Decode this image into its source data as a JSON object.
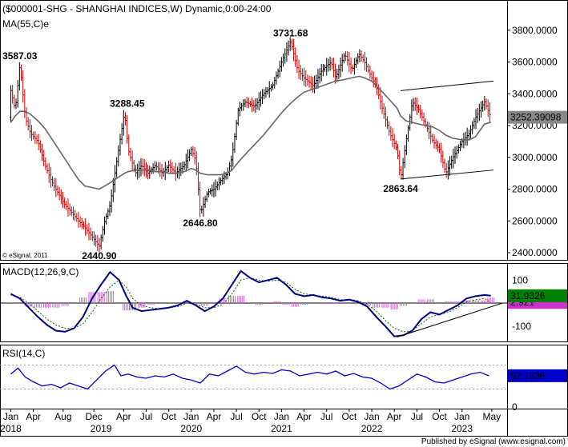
{
  "title": "($000001-SHG - SHANGHAI INDICES,W) Dynamic,0:00-24:00",
  "ma_label": "MA(55,C)e",
  "copyright": "© eSignal, 2011",
  "footer": "Published by eSignal (www.esignal.com)",
  "colors": {
    "price": "#cc0000",
    "price_up": "#000000",
    "ma": "#666666",
    "macd": "#000080",
    "signal": "#006600",
    "hist": "#cc66cc",
    "rsi": "#0000cc",
    "badge_blue": "#0000cc",
    "badge_green": "#008000",
    "badge_magenta": "#cc33cc"
  },
  "chart_data": [
    {
      "type": "line",
      "name": "price",
      "ylim": [
        2380,
        3950
      ],
      "y_ticks": [
        "3800.0000",
        "3600.0000",
        "3400.0000",
        "3200.0000",
        "3000.0000",
        "2800.0000",
        "2600.0000",
        "2400.0000"
      ],
      "y_tick_values": [
        3800,
        3600,
        3400,
        3200,
        3000,
        2800,
        2600,
        2400
      ],
      "last_value_label": "3252.39098",
      "last_value": 3252.39,
      "annotations": [
        {
          "text": "3587.03",
          "value": 3587.03,
          "date": 2018.1
        },
        {
          "text": "3288.45",
          "value": 3288.45,
          "date": 2019.29
        },
        {
          "text": "3731.68",
          "value": 3731.68,
          "date": 2021.1
        },
        {
          "text": "2440.90",
          "value": 2440.9,
          "date": 2018.98
        },
        {
          "text": "2646.80",
          "value": 2646.8,
          "date": 2020.1
        },
        {
          "text": "2863.64",
          "value": 2863.64,
          "date": 2022.32
        }
      ],
      "x_dates": [
        2018.0,
        2018.05,
        2018.1,
        2018.16,
        2018.22,
        2018.3,
        2018.38,
        2018.45,
        2018.52,
        2018.6,
        2018.68,
        2018.75,
        2018.82,
        2018.9,
        2018.98,
        2019.04,
        2019.1,
        2019.18,
        2019.26,
        2019.3,
        2019.38,
        2019.45,
        2019.52,
        2019.6,
        2019.68,
        2019.75,
        2019.83,
        2019.92,
        2020.0,
        2020.05,
        2020.1,
        2020.18,
        2020.25,
        2020.32,
        2020.4,
        2020.45,
        2020.52,
        2020.6,
        2020.7,
        2020.8,
        2020.9,
        2021.0,
        2021.1,
        2021.18,
        2021.25,
        2021.35,
        2021.45,
        2021.55,
        2021.6,
        2021.7,
        2021.78,
        2021.86,
        2021.92,
        2022.0,
        2022.05,
        2022.12,
        2022.2,
        2022.28,
        2022.32,
        2022.38,
        2022.45,
        2022.52,
        2022.6,
        2022.68,
        2022.75,
        2022.82,
        2022.9,
        2023.0,
        2023.08,
        2023.15,
        2023.2,
        2023.25,
        2023.32
      ],
      "close": [
        3420,
        3300,
        3587,
        3250,
        3150,
        3100,
        2950,
        2850,
        2780,
        2700,
        2650,
        2600,
        2560,
        2500,
        2440,
        2600,
        2700,
        3000,
        3288,
        3050,
        2900,
        2950,
        2900,
        2950,
        2900,
        2950,
        2900,
        2950,
        3050,
        2980,
        2646,
        2780,
        2800,
        2850,
        2900,
        3000,
        3300,
        3350,
        3320,
        3400,
        3450,
        3600,
        3731,
        3550,
        3500,
        3450,
        3550,
        3600,
        3500,
        3650,
        3550,
        3650,
        3600,
        3500,
        3450,
        3300,
        3150,
        3050,
        2863,
        3100,
        3350,
        3300,
        3200,
        3100,
        3050,
        2900,
        3000,
        3100,
        3150,
        3250,
        3300,
        3350,
        3252
      ],
      "ma55": [
        3220,
        3260,
        3290,
        3290,
        3270,
        3230,
        3180,
        3120,
        3060,
        2990,
        2920,
        2860,
        2820,
        2810,
        2800,
        2820,
        2840,
        2870,
        2900,
        2910,
        2920,
        2920,
        2920,
        2910,
        2910,
        2900,
        2900,
        2910,
        2930,
        2920,
        2900,
        2890,
        2890,
        2890,
        2900,
        2920,
        2970,
        3020,
        3080,
        3140,
        3210,
        3280,
        3340,
        3380,
        3410,
        3430,
        3450,
        3470,
        3480,
        3490,
        3500,
        3510,
        3500,
        3480,
        3450,
        3410,
        3360,
        3310,
        3260,
        3230,
        3220,
        3210,
        3200,
        3190,
        3170,
        3140,
        3120,
        3110,
        3110,
        3130,
        3170,
        3210,
        3220
      ]
    },
    {
      "type": "line",
      "name": "MACD(12,26,9,C)",
      "ylim": [
        -160,
        160
      ],
      "y_ticks": [
        "100",
        "-100"
      ],
      "y_tick_values": [
        100,
        -100
      ],
      "last_value_label": "31.9326",
      "last_value": 31.93,
      "signal_last_label": "2.921",
      "signal_last_value": 2.92,
      "x_dates": [
        2018.0,
        2018.1,
        2018.2,
        2018.3,
        2018.4,
        2018.5,
        2018.6,
        2018.7,
        2018.8,
        2018.9,
        2019.0,
        2019.1,
        2019.2,
        2019.28,
        2019.35,
        2019.45,
        2019.55,
        2019.65,
        2019.75,
        2019.85,
        2019.95,
        2020.05,
        2020.15,
        2020.25,
        2020.35,
        2020.45,
        2020.55,
        2020.65,
        2020.75,
        2020.85,
        2020.95,
        2021.05,
        2021.15,
        2021.25,
        2021.35,
        2021.45,
        2021.55,
        2021.65,
        2021.75,
        2021.85,
        2021.95,
        2022.05,
        2022.15,
        2022.25,
        2022.35,
        2022.45,
        2022.55,
        2022.65,
        2022.75,
        2022.85,
        2022.95,
        2023.05,
        2023.15,
        2023.25,
        2023.32
      ],
      "macd": [
        40,
        20,
        -20,
        -60,
        -95,
        -120,
        -125,
        -110,
        -60,
        20,
        80,
        135,
        100,
        30,
        -20,
        -35,
        -30,
        -25,
        -20,
        -10,
        10,
        -10,
        -35,
        -15,
        20,
        80,
        140,
        110,
        90,
        100,
        110,
        80,
        40,
        30,
        35,
        25,
        20,
        10,
        15,
        5,
        -15,
        -60,
        -100,
        -145,
        -140,
        -120,
        -70,
        -40,
        -50,
        -30,
        -10,
        20,
        30,
        35,
        32
      ],
      "signal": [
        35,
        25,
        0,
        -35,
        -70,
        -95,
        -110,
        -110,
        -90,
        -40,
        20,
        70,
        100,
        70,
        20,
        -10,
        -20,
        -25,
        -20,
        -15,
        0,
        -5,
        -20,
        -20,
        -5,
        40,
        100,
        110,
        100,
        95,
        100,
        90,
        60,
        40,
        35,
        30,
        25,
        15,
        15,
        10,
        -5,
        -35,
        -75,
        -110,
        -125,
        -120,
        -90,
        -60,
        -50,
        -40,
        -20,
        5,
        15,
        20,
        3
      ]
    },
    {
      "type": "line",
      "name": "RSI(14,C)",
      "ylim": [
        0,
        100
      ],
      "y_ticks": [
        "50",
        "0"
      ],
      "y_tick_values": [
        50,
        0
      ],
      "last_value_label": "52.1836",
      "last_value": 52.18,
      "x_dates": [
        2018.0,
        2018.08,
        2018.16,
        2018.25,
        2018.35,
        2018.45,
        2018.55,
        2018.65,
        2018.75,
        2018.85,
        2018.95,
        2019.05,
        2019.15,
        2019.22,
        2019.3,
        2019.4,
        2019.5,
        2019.6,
        2019.7,
        2019.8,
        2019.9,
        2020.0,
        2020.1,
        2020.2,
        2020.3,
        2020.4,
        2020.5,
        2020.6,
        2020.7,
        2020.8,
        2020.9,
        2021.0,
        2021.1,
        2021.2,
        2021.3,
        2021.4,
        2021.5,
        2021.6,
        2021.7,
        2021.8,
        2021.9,
        2022.0,
        2022.1,
        2022.2,
        2022.3,
        2022.4,
        2022.5,
        2022.6,
        2022.7,
        2022.8,
        2022.9,
        2023.0,
        2023.1,
        2023.2,
        2023.3
      ],
      "rsi": [
        55,
        65,
        50,
        42,
        35,
        38,
        32,
        40,
        35,
        30,
        45,
        60,
        70,
        52,
        55,
        50,
        48,
        52,
        50,
        55,
        48,
        45,
        40,
        55,
        52,
        60,
        68,
        58,
        55,
        58,
        56,
        62,
        60,
        52,
        55,
        58,
        55,
        60,
        52,
        56,
        50,
        48,
        40,
        30,
        35,
        45,
        55,
        50,
        42,
        40,
        45,
        50,
        55,
        58,
        52
      ]
    }
  ],
  "x_ticks": [
    {
      "label": "Jan",
      "date": 2018.0
    },
    {
      "label": "Apr",
      "date": 2018.25
    },
    {
      "label": "Aug",
      "date": 2018.58
    },
    {
      "label": "Dec",
      "date": 2018.92
    },
    {
      "label": "Apr",
      "date": 2019.25
    },
    {
      "label": "Jul",
      "date": 2019.5
    },
    {
      "label": "Oct",
      "date": 2019.75
    },
    {
      "label": "Jan",
      "date": 2020.0
    },
    {
      "label": "Apr",
      "date": 2020.25
    },
    {
      "label": "Jul",
      "date": 2020.5
    },
    {
      "label": "Oct",
      "date": 2020.75
    },
    {
      "label": "Jan",
      "date": 2021.0
    },
    {
      "label": "Apr",
      "date": 2021.25
    },
    {
      "label": "Jul",
      "date": 2021.5
    },
    {
      "label": "Oct",
      "date": 2021.75
    },
    {
      "label": "Jan",
      "date": 2022.0
    },
    {
      "label": "Apr",
      "date": 2022.25
    },
    {
      "label": "Jul",
      "date": 2022.5
    },
    {
      "label": "Oct",
      "date": 2022.75
    },
    {
      "label": "Jan",
      "date": 2023.0
    },
    {
      "label": "May",
      "date": 2023.33
    }
  ],
  "x_years": [
    {
      "label": "2018",
      "date": 2018.0
    },
    {
      "label": "2019",
      "date": 2019.0
    },
    {
      "label": "2020",
      "date": 2020.0
    },
    {
      "label": "2021",
      "date": 2021.0
    },
    {
      "label": "2022",
      "date": 2022.0
    },
    {
      "label": "2023",
      "date": 2023.0
    }
  ]
}
